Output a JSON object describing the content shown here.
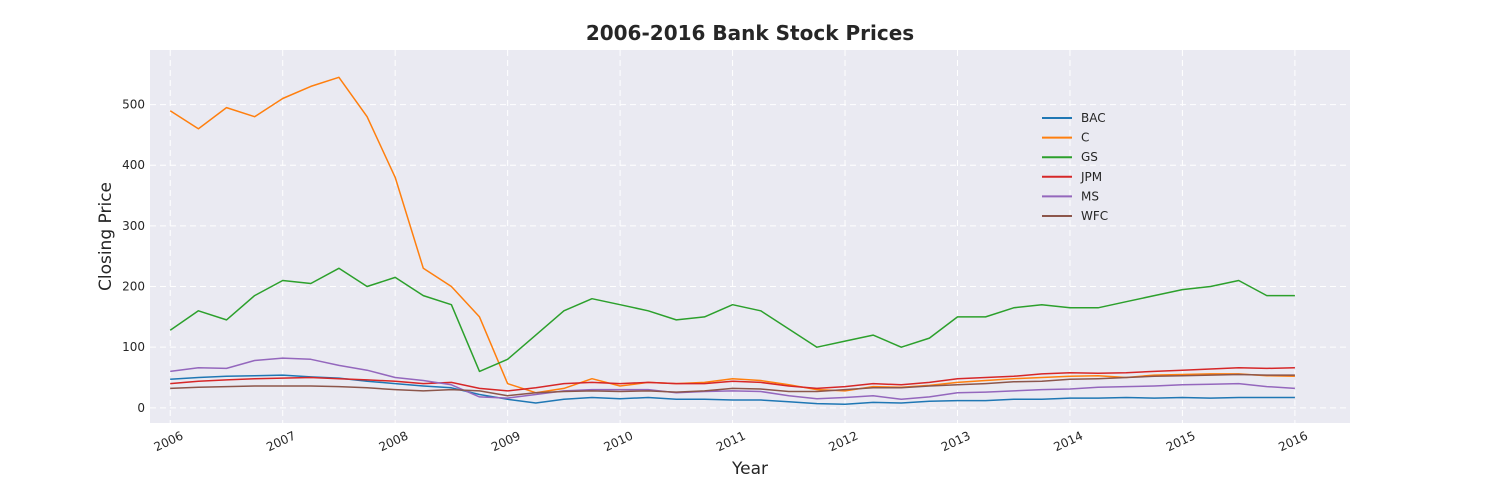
{
  "chart_data": {
    "type": "line",
    "title": "2006-2016 Bank Stock Prices",
    "xlabel": "Year",
    "ylabel": "Closing Price",
    "xlim": [
      2005.82,
      2016.49
    ],
    "ylim": [
      -25,
      590
    ],
    "x_ticks": [
      2006,
      2007,
      2008,
      2009,
      2010,
      2011,
      2012,
      2013,
      2014,
      2015,
      2016
    ],
    "x_tick_labels": [
      "2006",
      "2007",
      "2008",
      "2009",
      "2010",
      "2011",
      "2012",
      "2013",
      "2014",
      "2015",
      "2016"
    ],
    "y_ticks": [
      0,
      100,
      200,
      300,
      400,
      500
    ],
    "y_tick_labels": [
      "0",
      "100",
      "200",
      "300",
      "400",
      "500"
    ],
    "grid": true,
    "legend_position": "upper-right",
    "x": [
      2006.0,
      2006.25,
      2006.5,
      2006.75,
      2007.0,
      2007.25,
      2007.5,
      2007.75,
      2008.0,
      2008.25,
      2008.5,
      2008.75,
      2009.0,
      2009.25,
      2009.5,
      2009.75,
      2010.0,
      2010.25,
      2010.5,
      2010.75,
      2011.0,
      2011.25,
      2011.5,
      2011.75,
      2012.0,
      2012.25,
      2012.5,
      2012.75,
      2013.0,
      2013.25,
      2013.5,
      2013.75,
      2014.0,
      2014.25,
      2014.5,
      2014.75,
      2015.0,
      2015.25,
      2015.5,
      2015.75,
      2016.0
    ],
    "series": [
      {
        "name": "BAC",
        "color": "#1f77b4",
        "values": [
          47,
          50,
          52,
          53,
          54,
          51,
          49,
          44,
          40,
          36,
          33,
          22,
          14,
          8,
          14,
          17,
          15,
          17,
          14,
          14,
          13,
          13,
          10,
          7,
          6,
          9,
          8,
          11,
          12,
          12,
          14,
          14,
          16,
          16,
          17,
          16,
          17,
          16,
          17,
          17,
          17
        ]
      },
      {
        "name": "C",
        "color": "#ff7f0e",
        "values": [
          490,
          460,
          495,
          480,
          510,
          530,
          545,
          480,
          380,
          230,
          200,
          150,
          40,
          25,
          32,
          48,
          36,
          42,
          40,
          42,
          48,
          45,
          38,
          30,
          28,
          35,
          34,
          37,
          42,
          45,
          48,
          50,
          52,
          53,
          50,
          54,
          55,
          56,
          56,
          53,
          52
        ]
      },
      {
        "name": "GS",
        "color": "#2ca02c",
        "values": [
          128,
          160,
          145,
          185,
          210,
          205,
          230,
          200,
          215,
          185,
          170,
          60,
          80,
          120,
          160,
          180,
          170,
          160,
          145,
          150,
          170,
          160,
          130,
          100,
          110,
          120,
          100,
          115,
          150,
          150,
          165,
          170,
          165,
          165,
          175,
          185,
          195,
          200,
          210,
          185,
          185
        ]
      },
      {
        "name": "JPM",
        "color": "#d62728",
        "values": [
          40,
          44,
          46,
          48,
          49,
          50,
          48,
          46,
          44,
          40,
          42,
          32,
          28,
          33,
          40,
          42,
          40,
          42,
          40,
          40,
          44,
          42,
          36,
          32,
          35,
          40,
          38,
          42,
          48,
          50,
          52,
          56,
          58,
          57,
          58,
          60,
          62,
          64,
          66,
          65,
          66
        ]
      },
      {
        "name": "MS",
        "color": "#9467bd",
        "values": [
          60,
          66,
          65,
          78,
          82,
          80,
          70,
          62,
          50,
          45,
          38,
          18,
          16,
          22,
          28,
          30,
          30,
          30,
          25,
          27,
          28,
          27,
          20,
          15,
          17,
          20,
          14,
          18,
          25,
          26,
          28,
          30,
          31,
          34,
          35,
          36,
          38,
          39,
          40,
          35,
          32
        ]
      },
      {
        "name": "WFC",
        "color": "#8c564b",
        "values": [
          32,
          34,
          35,
          36,
          36,
          36,
          35,
          33,
          30,
          28,
          30,
          28,
          20,
          25,
          27,
          28,
          27,
          28,
          26,
          28,
          32,
          31,
          27,
          27,
          30,
          33,
          33,
          36,
          38,
          40,
          43,
          44,
          47,
          48,
          50,
          52,
          53,
          54,
          55,
          54,
          54
        ]
      }
    ]
  }
}
